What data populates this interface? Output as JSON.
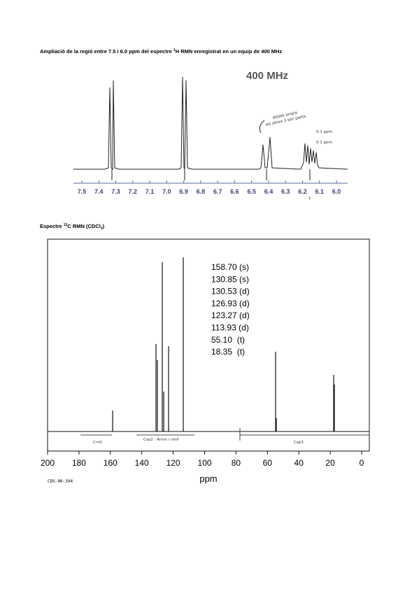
{
  "header": {
    "title": "Ampliació  de la regió entre 7.5 i 6.0 ppm del espectre ",
    "title_sup": "1",
    "title_rest": "H RMN enregistrat en un equip de 400 MHz"
  },
  "h_spectrum": {
    "field": "400 MHz",
    "annotation_1": "doblet ample",
    "annotation_2": "els altres 3 són petits",
    "annotation_3": "0.1 ppm",
    "annotation_4": "0.1 ppm",
    "marker": "1",
    "ticks": [
      "7.5",
      "7.4",
      "7.3",
      "7.2",
      "7.1",
      "7.0",
      "6.9",
      "6.8",
      "6.7",
      "6.6",
      "6.5",
      "6.4",
      "6.3",
      "6.2",
      "6.1",
      "6.0"
    ]
  },
  "c_heading": {
    "part_1": "Espectre ",
    "sup": "13",
    "part_2": "C RMN (CDCl",
    "sub": "3",
    "part_3": ")"
  },
  "c_spectrum": {
    "peaks": [
      "158.70 (s)",
      "130.85 (s)",
      "130.53 (d)",
      "126.93 (d)",
      "123.27 (d)",
      "113.93 (d)",
      "55.10  (t)",
      "18.35  (t)"
    ],
    "regions": [
      "C=O",
      "Csp2 - Arom / vinil",
      "Csp3"
    ],
    "ticks": [
      "200",
      "180",
      "160",
      "140",
      "120",
      "100",
      "80",
      "60",
      "40",
      "20",
      "0"
    ],
    "x_label": "ppm",
    "code": "CDS-00-394"
  }
}
